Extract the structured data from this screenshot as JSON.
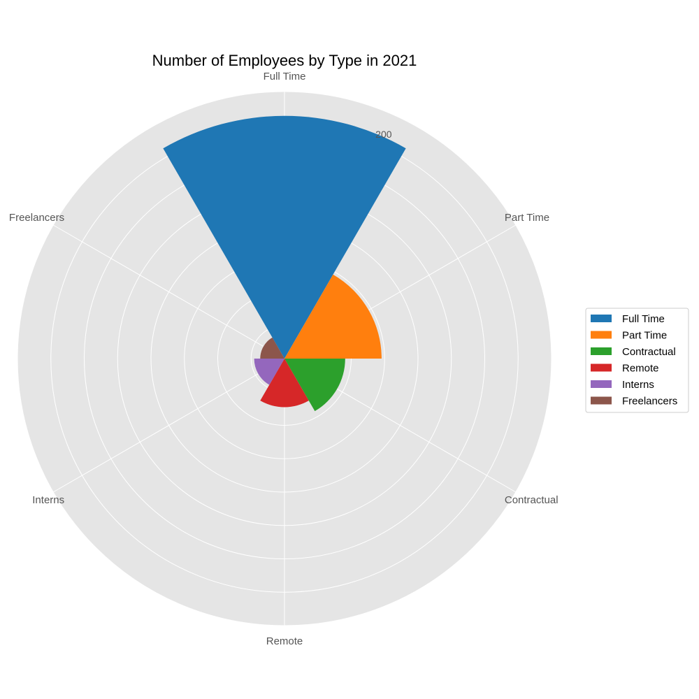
{
  "chart_data": {
    "type": "polar-bar",
    "title": "Number of Employees by Type in 2021",
    "categories": [
      "Full Time",
      "Part Time",
      "Contractual",
      "Remote",
      "Interns",
      "Freelancers"
    ],
    "values": [
      200,
      80,
      50,
      40,
      25,
      20
    ],
    "colors": [
      "#1f77b4",
      "#ff7f0e",
      "#2ca02c",
      "#d62728",
      "#9467bd",
      "#8c564b"
    ],
    "r_tick_labels": [
      "200"
    ],
    "rlim": [
      0,
      220
    ],
    "grid": true,
    "legend_position": "right"
  }
}
